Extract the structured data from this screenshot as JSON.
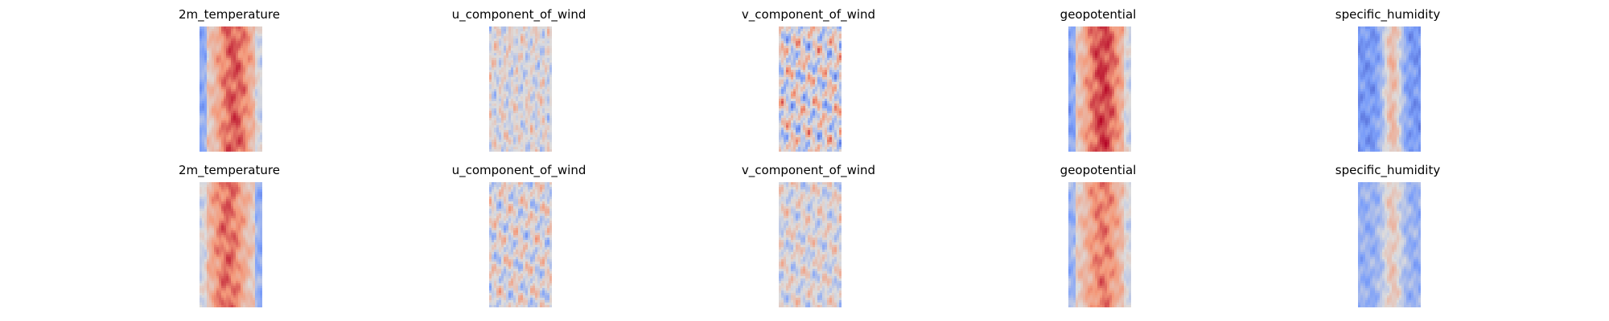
{
  "chart_data": {
    "type": "heatmap",
    "colormap": "coolwarm",
    "axes_visible": false,
    "layout": {
      "rows": 2,
      "columns": 5
    },
    "panels": [
      {
        "title": "2m_temperature",
        "pattern": "warm_band",
        "strength": 0.85,
        "mirror": false
      },
      {
        "title": "u_component_of_wind",
        "pattern": "streaks",
        "strength": 0.6,
        "mirror": false
      },
      {
        "title": "v_component_of_wind",
        "pattern": "speckle",
        "strength": 0.75,
        "mirror": false
      },
      {
        "title": "geopotential",
        "pattern": "warm_band",
        "strength": 0.95,
        "mirror": false
      },
      {
        "title": "specific_humidity",
        "pattern": "humid_core",
        "strength": 0.9,
        "mirror": false
      },
      {
        "title": "2m_temperature",
        "pattern": "warm_band",
        "strength": 0.78,
        "mirror": true
      },
      {
        "title": "u_component_of_wind",
        "pattern": "speckle",
        "strength": 0.55,
        "mirror": false
      },
      {
        "title": "v_component_of_wind",
        "pattern": "speckle",
        "strength": 0.45,
        "mirror": false
      },
      {
        "title": "geopotential",
        "pattern": "warm_band",
        "strength": 0.7,
        "mirror": false
      },
      {
        "title": "specific_humidity",
        "pattern": "humid_core",
        "strength": 0.6,
        "mirror": false
      }
    ]
  }
}
